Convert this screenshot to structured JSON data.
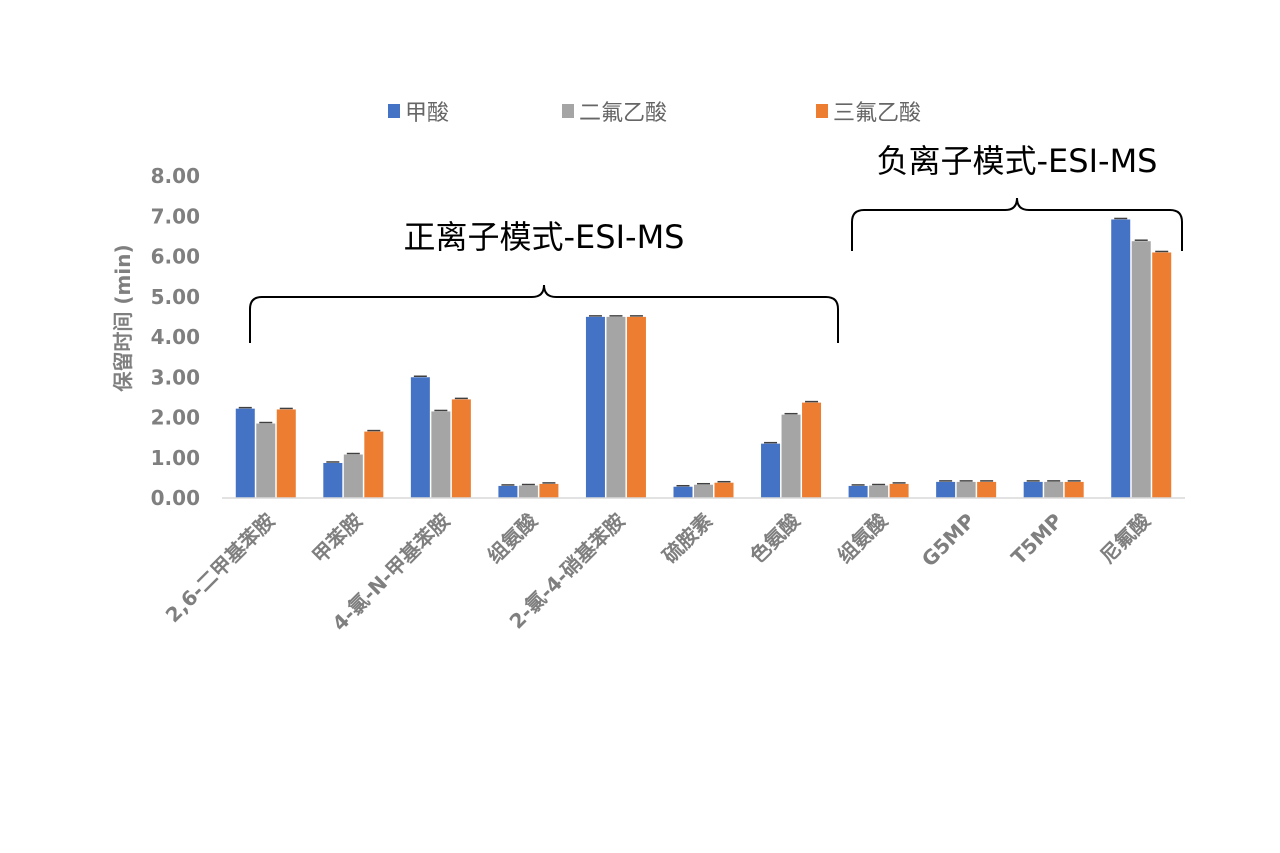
{
  "chart_data": {
    "type": "bar",
    "ylabel": "保留时间 (min)",
    "ylim": [
      0,
      8
    ],
    "yticks": [
      "0.00",
      "1.00",
      "2.00",
      "3.00",
      "4.00",
      "5.00",
      "6.00",
      "7.00",
      "8.00"
    ],
    "categories": [
      "2,6-二甲基苯胺",
      "甲苯胺",
      "4-氯-N-甲基苯胺",
      "组氨酸",
      "2-氯-4-硝基苯胺",
      "硫胺素",
      "色氨酸",
      "组氨酸",
      "G5MP",
      "T5MP",
      "尼氟酸"
    ],
    "series": [
      {
        "name": "甲酸",
        "color": "#4472c4",
        "values": [
          2.22,
          0.87,
          3.0,
          0.3,
          4.5,
          0.28,
          1.35,
          0.3,
          0.4,
          0.4,
          6.92
        ]
      },
      {
        "name": "二氟乙酸",
        "color": "#a5a5a5",
        "values": [
          1.85,
          1.08,
          2.15,
          0.31,
          4.5,
          0.33,
          2.07,
          0.31,
          0.4,
          0.4,
          6.38
        ]
      },
      {
        "name": "三氟乙酸",
        "color": "#ed7d31",
        "values": [
          2.2,
          1.65,
          2.45,
          0.35,
          4.5,
          0.38,
          2.37,
          0.35,
          0.4,
          0.4,
          6.1
        ]
      }
    ],
    "legend_position": "top",
    "grid": false,
    "annotations": [
      {
        "text": "正离子模式-ESI-MS",
        "from_category": 0,
        "to_category": 6
      },
      {
        "text": "负离子模式-ESI-MS",
        "from_category": 7,
        "to_category": 10
      }
    ]
  }
}
